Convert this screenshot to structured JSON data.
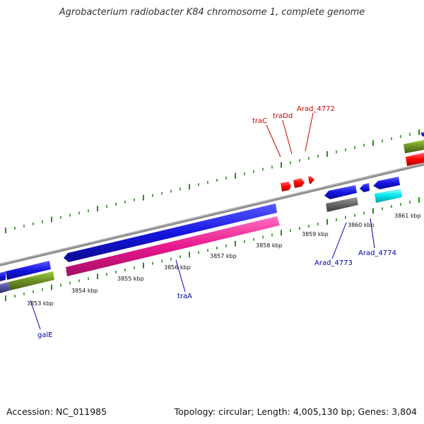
{
  "title": "Agrobacterium radiobacter K84 chromosome 1, complete genome",
  "footer": {
    "accession_label": "Accession: NC_011985",
    "summary": "Topology: circular; Length: 4,005,130 bp; Genes: 3,804"
  },
  "colors": {
    "backbone": "#8c8c8c",
    "tick": "#2e8b22",
    "forward_cds": "#1515e0",
    "reverse_cds": "#e8188e",
    "olive": "#6b8e23",
    "red": "#ff0000",
    "gray": "#666666",
    "cyan": "#00e5ee",
    "purple": "#5050a0",
    "label_forward": "#cc0000",
    "label_reverse": "#0000aa"
  },
  "scale_labels": [
    "3853 kbp",
    "3854 kbp",
    "3855 kbp",
    "3856 kbp",
    "3857 kbp",
    "3858 kbp",
    "3859 kbp",
    "3860 kbp",
    "3861 kbp"
  ],
  "gene_labels": [
    {
      "text": "traC",
      "strand": "forward"
    },
    {
      "text": "traDd",
      "strand": "forward"
    },
    {
      "text": "Arad_4772",
      "strand": "forward"
    },
    {
      "text": "galE",
      "strand": "reverse"
    },
    {
      "text": "traA",
      "strand": "reverse"
    },
    {
      "text": "Arad_4773",
      "strand": "reverse"
    },
    {
      "text": "Arad_4774",
      "strand": "reverse"
    }
  ]
}
